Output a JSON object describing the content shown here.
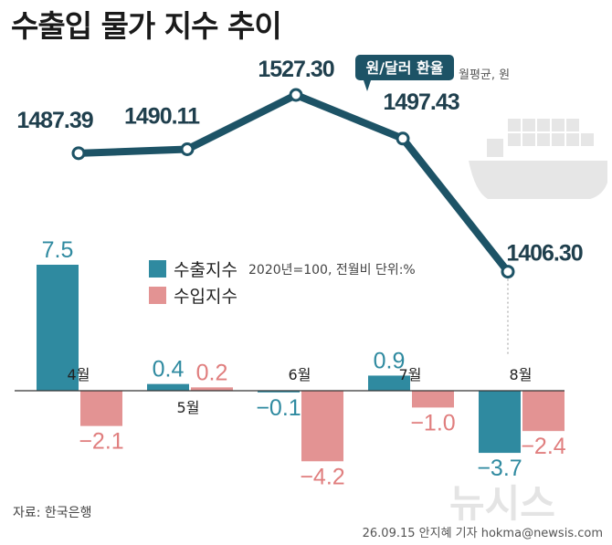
{
  "title": "수출입 물가 지수 추이",
  "chart_data": [
    {
      "type": "line",
      "series": [
        {
          "name": "원/달러 환율",
          "x": [
            "4월",
            "5월",
            "6월",
            "7월",
            "8월"
          ],
          "values": [
            1487.39,
            1490.11,
            1527.3,
            1497.43,
            1406.3
          ]
        }
      ],
      "value_labels": [
        "1487.39",
        "1490.11",
        "1527.30",
        "1497.43",
        "1406.30"
      ],
      "unit_note": "월평균, 원",
      "color": "#1d5366"
    },
    {
      "type": "bar",
      "categories": [
        "4월",
        "5월",
        "6월",
        "7월",
        "8월"
      ],
      "series": [
        {
          "name": "수출지수",
          "values": [
            7.5,
            0.4,
            -0.1,
            0.9,
            -3.7
          ],
          "labels": [
            "7.5",
            "0.4",
            "−0.1",
            "0.9",
            "−3.7"
          ],
          "color": "#2f8aa0"
        },
        {
          "name": "수입지수",
          "values": [
            -2.1,
            0.2,
            -4.2,
            -1.0,
            -2.4
          ],
          "labels": [
            "−2.1",
            "0.2",
            "−4.2",
            "−1.0",
            "−2.4"
          ],
          "color": "#e39393"
        }
      ],
      "unit_note": "2020년=100, 전월비 단위:%"
    }
  ],
  "source": "자료: 한국은행",
  "credit": "26.09.15 안지혜 기자 hokma@newsis.com",
  "watermark": "뉴시스",
  "icons": [
    "cargo-ship-icon"
  ]
}
